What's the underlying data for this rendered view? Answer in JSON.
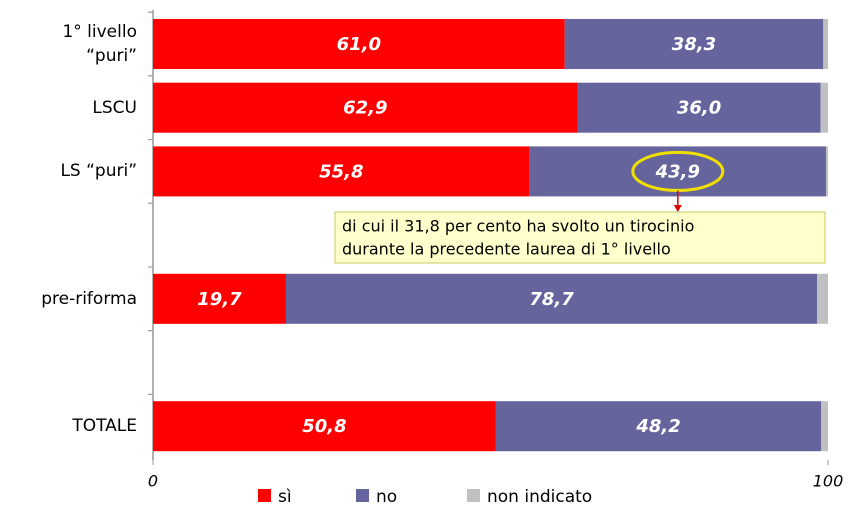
{
  "chart_data": {
    "type": "stacked-bar-horizontal",
    "categories": [
      "1° livello\n“puri”",
      "LSCU",
      "LS “puri”",
      null,
      "pre-riforma",
      null,
      "TOTALE"
    ],
    "series": [
      {
        "name": "sì",
        "color": "#ff0000",
        "values": [
          61.0,
          62.9,
          55.8,
          null,
          19.7,
          null,
          50.8
        ],
        "value_labels": [
          "61,0",
          "62,9",
          "55,8",
          null,
          "19,7",
          null,
          "50,8"
        ]
      },
      {
        "name": "no",
        "color": "#66649c",
        "values": [
          38.3,
          36.0,
          43.9,
          null,
          78.7,
          null,
          48.2
        ],
        "value_labels": [
          "38,3",
          "36,0",
          "43,9",
          null,
          "78,7",
          null,
          "48,2"
        ]
      },
      {
        "name": "non indicato",
        "color": "#c0c0c0",
        "values": [
          0.7,
          1.1,
          0.3,
          null,
          1.6,
          null,
          1.0
        ]
      }
    ],
    "xlim": [
      0,
      100
    ],
    "xticks": [
      0,
      100
    ],
    "annotation": [
      "di cui il 31,8 per cento ha svolto un tirocinio",
      "durante la precedente laurea di 1° livello"
    ]
  }
}
